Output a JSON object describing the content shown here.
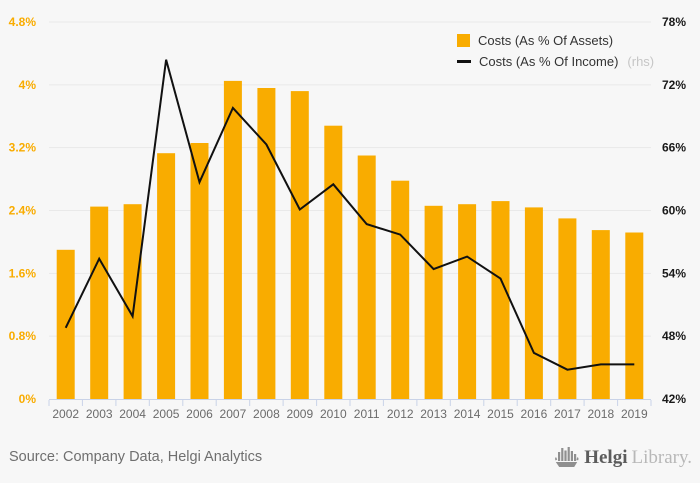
{
  "legend": {
    "items": [
      {
        "label": "Costs (As % Of Assets)",
        "swatch": "square",
        "color": "#F9AC00"
      },
      {
        "label": "Costs (As % Of Income)",
        "suffix": "(rhs)",
        "swatch": "line",
        "color": "#111111"
      }
    ]
  },
  "chart_data": {
    "type": "bar",
    "subtype": "bar-line-combo",
    "categories": [
      "2002",
      "2003",
      "2004",
      "2005",
      "2006",
      "2007",
      "2008",
      "2009",
      "2010",
      "2011",
      "2012",
      "2013",
      "2014",
      "2015",
      "2016",
      "2017",
      "2018",
      "2019"
    ],
    "series": [
      {
        "name": "Costs (As % Of Assets)",
        "type": "bar",
        "axis": "left",
        "color": "#F9AC00",
        "values": [
          1.9,
          2.45,
          2.48,
          3.13,
          3.26,
          4.05,
          3.96,
          3.92,
          3.48,
          3.1,
          2.78,
          2.46,
          2.48,
          2.52,
          2.44,
          2.3,
          2.15,
          2.12
        ]
      },
      {
        "name": "Costs (As % Of Income)",
        "type": "line",
        "axis": "right",
        "color": "#111111",
        "values": [
          48.8,
          55.4,
          49.9,
          74.4,
          62.7,
          69.8,
          66.3,
          60.1,
          62.5,
          58.7,
          57.7,
          54.4,
          55.6,
          53.5,
          46.4,
          44.8,
          45.3,
          45.3
        ]
      }
    ],
    "left_axis": {
      "min": 0,
      "max": 4.8,
      "step": 0.8,
      "tick_labels": [
        "0%",
        "0.8%",
        "1.6%",
        "2.4%",
        "3.2%",
        "4%",
        "4.8%"
      ],
      "color": "#F9AC00"
    },
    "right_axis": {
      "min": 42,
      "max": 78,
      "step": 6,
      "tick_labels": [
        "42%",
        "48%",
        "54%",
        "60%",
        "66%",
        "72%",
        "78%"
      ],
      "color": "#1a1a1a"
    },
    "grid": true,
    "legend_position": "top-right",
    "title": ""
  },
  "footer": {
    "source": "Source: Company Data, Helgi Analytics",
    "logo": {
      "brand": "Helgi",
      "brand_secondary": "Library."
    }
  }
}
